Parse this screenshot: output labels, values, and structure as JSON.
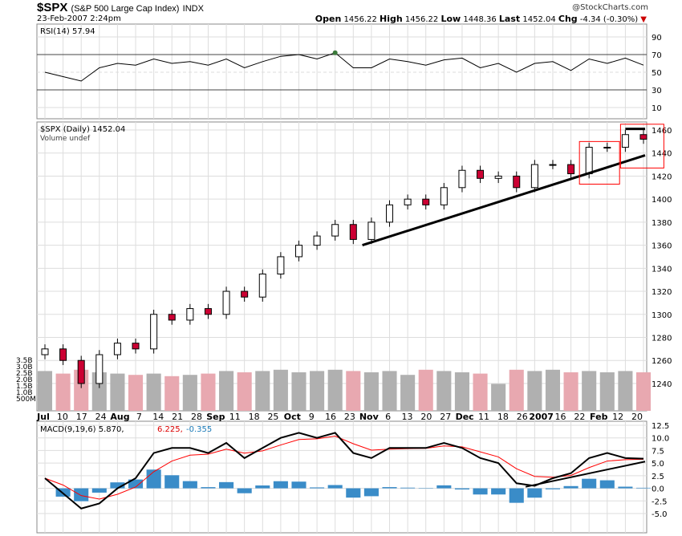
{
  "header": {
    "symbol": "$SPX",
    "name": "(S&P 500 Large Cap Index)",
    "exchange": "INDX",
    "date": "23-Feb-2007 2:24pm",
    "copyright": "@StockCharts.com",
    "open_label": "Open",
    "open": "1456.22",
    "high_label": "High",
    "high": "1456.22",
    "low_label": "Low",
    "low": "1448.36",
    "last_label": "Last",
    "last": "1452.04",
    "chg_label": "Chg",
    "chg": "-4.34 (-0.30%)"
  },
  "colors": {
    "up": "#000000",
    "down": "#cc0033",
    "volume_up": "#b0b0b0",
    "volume_down": "#e8a8b0",
    "macd": "#000000",
    "signal": "#ff0000",
    "histogram": "#3a8cc8",
    "rsi_fill": "#3a7a3a",
    "trend": "#000000",
    "highlight": "#ff0000"
  },
  "chart_data": [
    {
      "type": "line",
      "panel": "rsi",
      "legend": "RSI(14) 57.94",
      "yticks": [
        90,
        70,
        50,
        30,
        10
      ],
      "ylim": [
        0,
        100
      ],
      "values": [
        50,
        45,
        40,
        55,
        60,
        58,
        65,
        60,
        62,
        58,
        65,
        55,
        62,
        68,
        70,
        65,
        72,
        55,
        55,
        65,
        62,
        58,
        64,
        66,
        55,
        60,
        50,
        60,
        62,
        52,
        65,
        60,
        66,
        58
      ]
    },
    {
      "type": "candlestick",
      "panel": "price",
      "legend": "$SPX (Daily) 1452.04",
      "volume_legend": "Volume undef",
      "ylim": [
        1225,
        1465
      ],
      "yticks": [
        1460,
        1440,
        1420,
        1400,
        1380,
        1360,
        1340,
        1320,
        1300,
        1280,
        1260,
        1240
      ],
      "volume_ticks": [
        "3.5B",
        "3.0B",
        "2.5B",
        "2.0B",
        "1.5B",
        "1.0B",
        "500M"
      ],
      "xticks": [
        "Jul",
        "10",
        "17",
        "24",
        "Aug",
        "7",
        "14",
        "21",
        "28",
        "Sep",
        "11",
        "18",
        "25",
        "Oct",
        "9",
        "16",
        "23",
        "Nov",
        "6",
        "13",
        "20",
        "27",
        "Dec",
        "11",
        "18",
        "26",
        "2007",
        "16",
        "22",
        "Feb",
        "12",
        "20"
      ],
      "close": [
        1270,
        1260,
        1240,
        1265,
        1275,
        1270,
        1300,
        1295,
        1305,
        1300,
        1320,
        1315,
        1335,
        1350,
        1360,
        1368,
        1378,
        1365,
        1380,
        1395,
        1400,
        1395,
        1410,
        1425,
        1418,
        1420,
        1410,
        1430,
        1430,
        1422,
        1445,
        1445,
        1456,
        1452
      ],
      "volume_billions": [
        2.6,
        2.4,
        2.7,
        2.5,
        2.4,
        2.3,
        2.4,
        2.2,
        2.3,
        2.4,
        2.6,
        2.5,
        2.6,
        2.7,
        2.5,
        2.6,
        2.7,
        2.6,
        2.5,
        2.6,
        2.3,
        2.7,
        2.6,
        2.5,
        2.4,
        1.6,
        2.7,
        2.6,
        2.7,
        2.5,
        2.6,
        2.5,
        2.6,
        2.5
      ]
    },
    {
      "type": "line",
      "panel": "macd",
      "legend": "MACD(9,19,6) 5.870",
      "signal_value": "6.225",
      "hist_value": "-0.355",
      "yticks": [
        "12.5",
        "10.0",
        "7.5",
        "5.0",
        "2.5",
        "0.0",
        "-2.5",
        "-5.0"
      ],
      "ylim": [
        -5,
        12.5
      ],
      "macd": [
        2,
        -1,
        -4,
        -3,
        0,
        2,
        7,
        8,
        8,
        7,
        9,
        6,
        8,
        10,
        11,
        10,
        11,
        7,
        6,
        8,
        8,
        8,
        9,
        8,
        6,
        5,
        1,
        0.5,
        2,
        3,
        6,
        7,
        6,
        5.87
      ]
    }
  ]
}
